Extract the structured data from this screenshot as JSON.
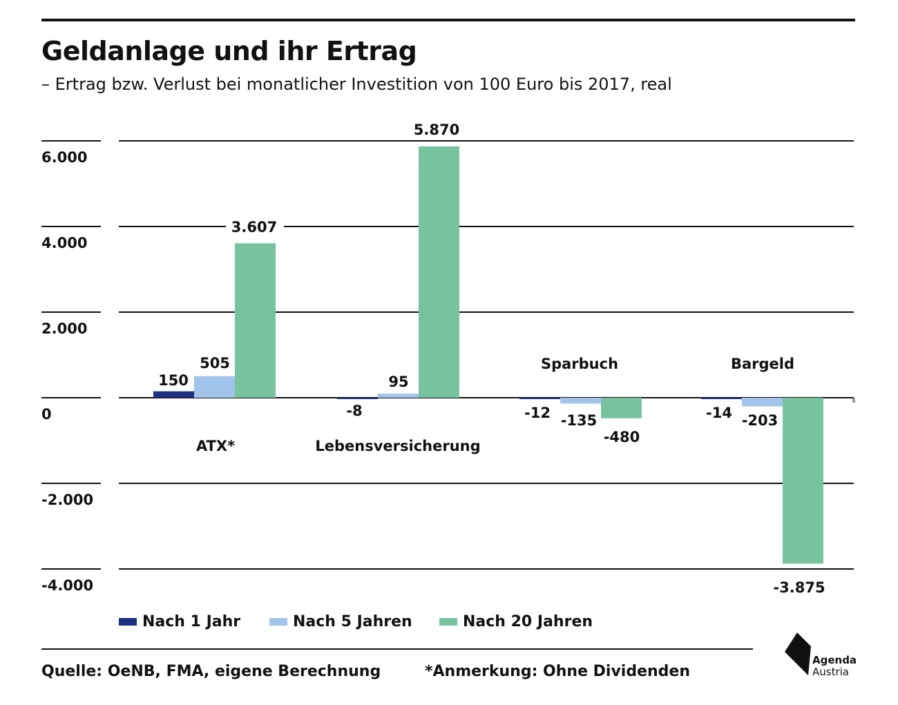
{
  "header": {
    "title": "Geldanlage und ihr Ertrag",
    "subtitle": "– Ertrag bzw. Verlust bei monatlicher Investition von 100 Euro bis 2017, real"
  },
  "chart_data": {
    "type": "bar",
    "categories": [
      "ATX*",
      "Lebensversicherung",
      "Sparbuch",
      "Bargeld"
    ],
    "series": [
      {
        "name": "Nach 1 Jahr",
        "color": "#1c2f80",
        "values": [
          150,
          -8,
          -12,
          -14
        ],
        "labels": [
          "150",
          "-8",
          "-12",
          "-14"
        ]
      },
      {
        "name": "Nach 5 Jahren",
        "color": "#a3c4ea",
        "values": [
          505,
          95,
          -135,
          -203
        ],
        "labels": [
          "505",
          "95",
          "-135",
          "-203"
        ]
      },
      {
        "name": "Nach 20 Jahren",
        "color": "#77c39f",
        "values": [
          3607,
          5870,
          -480,
          -3875
        ],
        "labels": [
          "3.607",
          "5.870",
          "-480",
          "-3.875"
        ]
      }
    ],
    "yticks": [
      6000,
      4000,
      2000,
      0,
      -2000,
      -4000
    ],
    "ytick_labels": [
      "6.000",
      "4.000",
      "2.000",
      "0",
      "-2.000",
      "-4.000"
    ],
    "ylim": [
      -4000,
      6000
    ],
    "grid": true,
    "legend_position": "bottom-left"
  },
  "legend": {
    "items": [
      {
        "label": "Nach 1 Jahr",
        "color": "#1c2f80"
      },
      {
        "label": "Nach 5 Jahren",
        "color": "#a3c4ea"
      },
      {
        "label": "Nach 20 Jahren",
        "color": "#77c39f"
      }
    ]
  },
  "footer": {
    "source": "Quelle: OeNB, FMA, eigene Berechnung",
    "note": "*Anmerkung: Ohne Dividenden"
  },
  "logo": {
    "line1": "Agenda",
    "line2": "Austria"
  }
}
